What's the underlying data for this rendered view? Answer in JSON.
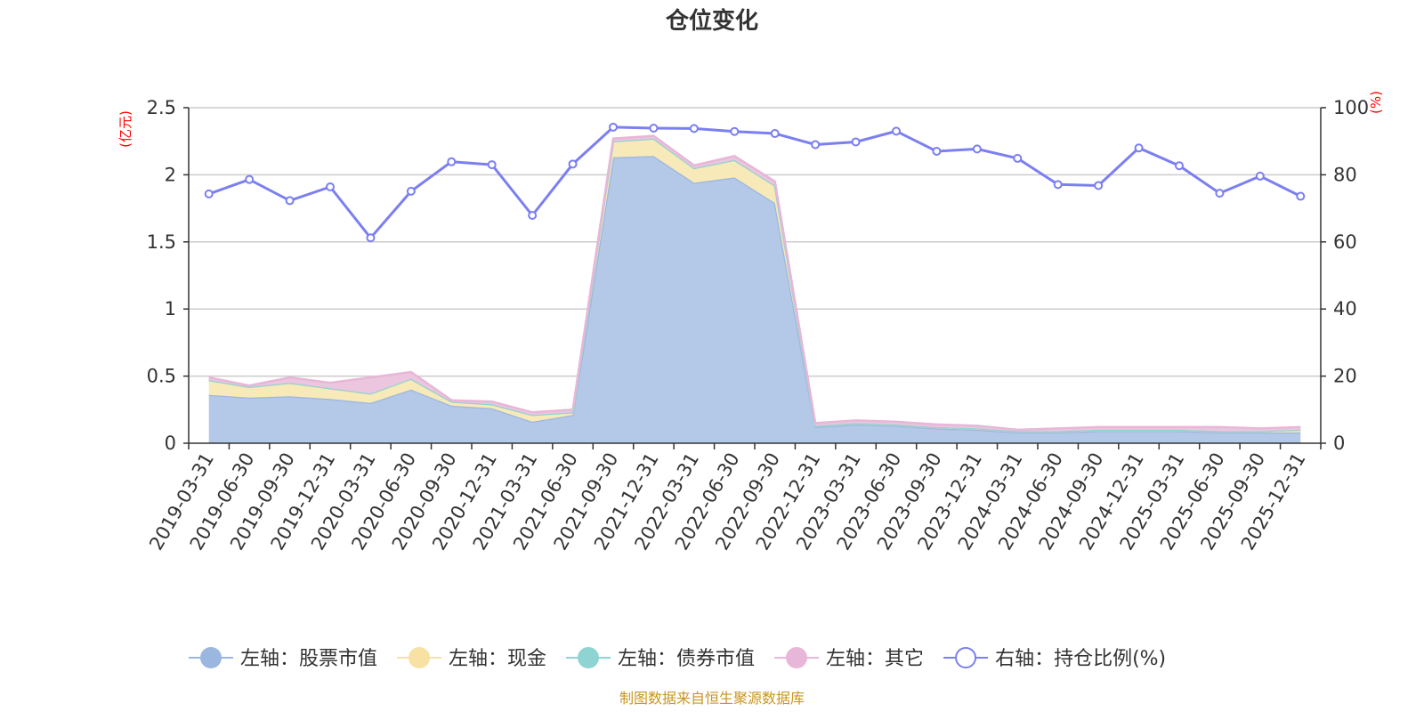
{
  "chart_data": {
    "type": "area",
    "title": "仓位变化",
    "left_axis": {
      "unit": "(亿元)",
      "ylim": [
        0,
        2.5
      ],
      "ticks": [
        "0",
        "0.5",
        "1",
        "1.5",
        "2",
        "2.5"
      ],
      "tick_values": [
        0,
        0.5,
        1,
        1.5,
        2,
        2.5
      ]
    },
    "right_axis": {
      "unit": "(%)",
      "ylim": [
        0,
        100
      ],
      "ticks": [
        "0",
        "20",
        "40",
        "60",
        "80",
        "100"
      ],
      "tick_values": [
        0,
        20,
        40,
        60,
        80,
        100
      ]
    },
    "categories": [
      "2019-03-31",
      "2019-06-30",
      "2019-09-30",
      "2019-12-31",
      "2020-03-31",
      "2020-06-30",
      "2020-09-30",
      "2020-12-31",
      "2021-03-31",
      "2021-06-30",
      "2021-09-30",
      "2021-12-31",
      "2022-03-31",
      "2022-06-30",
      "2022-09-30",
      "2022-12-31",
      "2023-03-31",
      "2023-06-30",
      "2023-09-30",
      "2023-12-31",
      "2024-03-31",
      "2024-06-30",
      "2024-09-30",
      "2024-12-31",
      "2025-03-31",
      "2025-06-30",
      "2025-09-30",
      "2025-12-31"
    ],
    "stacked_series": [
      {
        "name": "左轴：股票市值",
        "color": "#9bb7e0",
        "fill": "#b4c8e8",
        "values": [
          0.36,
          0.34,
          0.35,
          0.33,
          0.3,
          0.4,
          0.28,
          0.26,
          0.16,
          0.21,
          2.13,
          2.14,
          1.94,
          1.98,
          1.79,
          0.12,
          0.14,
          0.13,
          0.11,
          0.1,
          0.08,
          0.08,
          0.09,
          0.09,
          0.09,
          0.08,
          0.08,
          0.08
        ]
      },
      {
        "name": "左轴：现金",
        "color": "#f7e2a3",
        "fill": "#f7e9b8",
        "values": [
          0.11,
          0.08,
          0.1,
          0.08,
          0.07,
          0.08,
          0.03,
          0.03,
          0.05,
          0.02,
          0.12,
          0.13,
          0.11,
          0.13,
          0.13,
          0.01,
          0.01,
          0.01,
          0.01,
          0.01,
          0.01,
          0.01,
          0.01,
          0.01,
          0.01,
          0.01,
          0.01,
          0.02
        ]
      },
      {
        "name": "左轴：债券市值",
        "color": "#8fd3d3",
        "fill": "#a9dede",
        "values": [
          0,
          0,
          0,
          0,
          0,
          0,
          0,
          0,
          0,
          0,
          0,
          0,
          0,
          0,
          0,
          0,
          0,
          0,
          0,
          0,
          0,
          0,
          0,
          0,
          0,
          0,
          0,
          0
        ]
      },
      {
        "name": "左轴：其它",
        "color": "#e8b6d8",
        "fill": "#ecc6de",
        "values": [
          0.02,
          0.01,
          0.04,
          0.04,
          0.12,
          0.05,
          0.01,
          0.02,
          0.02,
          0.02,
          0.02,
          0.02,
          0.02,
          0.03,
          0.03,
          0.02,
          0.02,
          0.02,
          0.02,
          0.02,
          0.01,
          0.02,
          0.02,
          0.02,
          0.02,
          0.03,
          0.02,
          0.02
        ]
      }
    ],
    "line_series": {
      "name": "右轴：持仓比例(%)",
      "color": "#7b7ff0",
      "values": [
        74.3,
        78.6,
        72.3,
        76.4,
        61.2,
        75.1,
        83.9,
        83.0,
        67.9,
        83.2,
        94.2,
        93.9,
        93.8,
        92.9,
        92.3,
        89.0,
        89.8,
        93.0,
        87.0,
        87.7,
        84.9,
        77.1,
        76.8,
        88.0,
        82.7,
        74.5,
        79.6,
        73.6
      ]
    },
    "legend_position": "bottom",
    "grid": true
  },
  "footer": "制图数据来自恒生聚源数据库"
}
